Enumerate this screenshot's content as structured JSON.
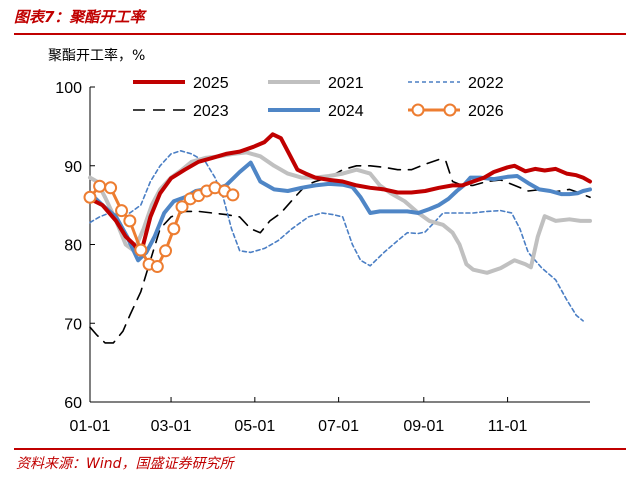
{
  "figure": {
    "title": "图表7：聚酯开工率",
    "source": "资料来源：Wind，国盛证券研究所"
  },
  "chart_data": {
    "type": "line",
    "ylabel": "聚酯开工率，%",
    "ylim": [
      60,
      100
    ],
    "yticks": [
      60,
      70,
      80,
      90,
      100
    ],
    "xlim": [
      1,
      365
    ],
    "xticks": [
      {
        "label": "01-01",
        "day": 1
      },
      {
        "label": "03-01",
        "day": 60
      },
      {
        "label": "05-01",
        "day": 121
      },
      {
        "label": "07-01",
        "day": 182
      },
      {
        "label": "09-01",
        "day": 244
      },
      {
        "label": "11-01",
        "day": 305
      }
    ],
    "grid": false,
    "legend": "top",
    "series": [
      {
        "name": "2025",
        "color": "#c00000",
        "style": "solid",
        "width": 4,
        "points": [
          [
            1,
            85.8
          ],
          [
            10,
            85
          ],
          [
            20,
            83
          ],
          [
            27,
            81
          ],
          [
            33,
            80
          ],
          [
            38,
            78.8
          ],
          [
            45,
            83.5
          ],
          [
            52,
            86.5
          ],
          [
            60,
            88.4
          ],
          [
            70,
            89.5
          ],
          [
            80,
            90.5
          ],
          [
            90,
            91
          ],
          [
            100,
            91.5
          ],
          [
            110,
            91.8
          ],
          [
            120,
            92.4
          ],
          [
            128,
            93
          ],
          [
            134,
            94
          ],
          [
            140,
            93.5
          ],
          [
            146,
            91.5
          ],
          [
            152,
            89.5
          ],
          [
            158,
            89
          ],
          [
            165,
            88.5
          ],
          [
            175,
            88.2
          ],
          [
            185,
            88
          ],
          [
            195,
            87.5
          ],
          [
            205,
            87.2
          ],
          [
            215,
            87
          ],
          [
            225,
            86.6
          ],
          [
            235,
            86.6
          ],
          [
            245,
            86.8
          ],
          [
            255,
            87.2
          ],
          [
            265,
            87.5
          ],
          [
            272,
            87.5
          ],
          [
            280,
            88
          ],
          [
            288,
            88.5
          ],
          [
            295,
            89.2
          ],
          [
            305,
            89.8
          ],
          [
            310,
            90
          ],
          [
            318,
            89.3
          ],
          [
            325,
            89.6
          ],
          [
            332,
            89.4
          ],
          [
            340,
            89.6
          ],
          [
            348,
            89
          ],
          [
            355,
            88.8
          ],
          [
            360,
            88.5
          ],
          [
            365,
            88
          ]
        ]
      },
      {
        "name": "2021",
        "color": "#c0c0c0",
        "style": "solid",
        "width": 4,
        "points": [
          [
            1,
            88.5
          ],
          [
            6,
            88
          ],
          [
            12,
            86
          ],
          [
            20,
            83
          ],
          [
            27,
            80
          ],
          [
            33,
            79.2
          ],
          [
            40,
            82
          ],
          [
            46,
            85
          ],
          [
            52,
            87
          ],
          [
            60,
            88.5
          ],
          [
            68,
            89.5
          ],
          [
            75,
            90.5
          ],
          [
            85,
            91
          ],
          [
            95,
            91.2
          ],
          [
            105,
            91.5
          ],
          [
            115,
            91.7
          ],
          [
            125,
            91.2
          ],
          [
            135,
            90
          ],
          [
            145,
            89
          ],
          [
            155,
            88.5
          ],
          [
            165,
            88.5
          ],
          [
            175,
            88.7
          ],
          [
            185,
            89
          ],
          [
            195,
            89.5
          ],
          [
            205,
            89
          ],
          [
            212,
            87.5
          ],
          [
            220,
            86.5
          ],
          [
            230,
            85.5
          ],
          [
            240,
            84
          ],
          [
            248,
            83
          ],
          [
            258,
            82.5
          ],
          [
            265,
            81.5
          ],
          [
            270,
            80
          ],
          [
            275,
            77.5
          ],
          [
            280,
            76.8
          ],
          [
            290,
            76.4
          ],
          [
            300,
            77
          ],
          [
            310,
            78
          ],
          [
            318,
            77.5
          ],
          [
            322,
            77.1
          ],
          [
            327,
            81
          ],
          [
            332,
            83.6
          ],
          [
            340,
            83
          ],
          [
            350,
            83.2
          ],
          [
            358,
            83
          ],
          [
            365,
            83
          ]
        ]
      },
      {
        "name": "2022",
        "color": "#4a7ec4",
        "style": "dashed-small",
        "width": 1.6,
        "points": [
          [
            1,
            82.8
          ],
          [
            8,
            83.5
          ],
          [
            15,
            84
          ],
          [
            22,
            83.8
          ],
          [
            30,
            84
          ],
          [
            38,
            85
          ],
          [
            45,
            88
          ],
          [
            52,
            90
          ],
          [
            60,
            91.5
          ],
          [
            67,
            91.9
          ],
          [
            75,
            91.5
          ],
          [
            85,
            90.5
          ],
          [
            92,
            88.5
          ],
          [
            98,
            86
          ],
          [
            104,
            82
          ],
          [
            110,
            79.2
          ],
          [
            118,
            79
          ],
          [
            128,
            79.5
          ],
          [
            138,
            80.5
          ],
          [
            148,
            82
          ],
          [
            160,
            83.5
          ],
          [
            170,
            84
          ],
          [
            178,
            83.8
          ],
          [
            185,
            83.5
          ],
          [
            192,
            80
          ],
          [
            198,
            78
          ],
          [
            205,
            77.3
          ],
          [
            215,
            79
          ],
          [
            225,
            80.5
          ],
          [
            232,
            81.5
          ],
          [
            240,
            81.4
          ],
          [
            245,
            81.6
          ],
          [
            250,
            82.5
          ],
          [
            258,
            84
          ],
          [
            270,
            84
          ],
          [
            280,
            84
          ],
          [
            290,
            84.2
          ],
          [
            300,
            84.3
          ],
          [
            308,
            84
          ],
          [
            314,
            82
          ],
          [
            320,
            79
          ],
          [
            330,
            77
          ],
          [
            340,
            75.5
          ],
          [
            348,
            73
          ],
          [
            355,
            71
          ],
          [
            360,
            70.3
          ]
        ]
      },
      {
        "name": "2023",
        "color": "#000000",
        "style": "dashed",
        "width": 1.6,
        "points": [
          [
            1,
            69.5
          ],
          [
            6,
            68.5
          ],
          [
            12,
            67.5
          ],
          [
            18,
            67.5
          ],
          [
            25,
            69
          ],
          [
            30,
            71
          ],
          [
            38,
            74
          ],
          [
            45,
            78
          ],
          [
            52,
            82
          ],
          [
            60,
            83.5
          ],
          [
            70,
            84.2
          ],
          [
            80,
            84.2
          ],
          [
            90,
            84
          ],
          [
            100,
            83.8
          ],
          [
            110,
            83.5
          ],
          [
            118,
            82
          ],
          [
            125,
            81.5
          ],
          [
            132,
            83
          ],
          [
            140,
            84
          ],
          [
            150,
            86
          ],
          [
            158,
            87.5
          ],
          [
            165,
            88
          ],
          [
            175,
            88.5
          ],
          [
            185,
            89.5
          ],
          [
            195,
            90
          ],
          [
            205,
            90
          ],
          [
            215,
            89.8
          ],
          [
            225,
            89.5
          ],
          [
            235,
            89.5
          ],
          [
            245,
            90.2
          ],
          [
            255,
            90.8
          ],
          [
            260,
            90.6
          ],
          [
            265,
            88
          ],
          [
            272,
            87.5
          ],
          [
            280,
            87.5
          ],
          [
            290,
            88
          ],
          [
            300,
            88.2
          ],
          [
            310,
            87.5
          ],
          [
            320,
            86.8
          ],
          [
            330,
            87
          ],
          [
            340,
            86.7
          ],
          [
            350,
            87
          ],
          [
            358,
            86.5
          ],
          [
            365,
            86
          ]
        ]
      },
      {
        "name": "2024",
        "color": "#4f86c6",
        "style": "solid",
        "width": 4,
        "points": [
          [
            1,
            86.5
          ],
          [
            10,
            85
          ],
          [
            20,
            83.5
          ],
          [
            28,
            81
          ],
          [
            36,
            78
          ],
          [
            42,
            79
          ],
          [
            48,
            81
          ],
          [
            55,
            84
          ],
          [
            62,
            85.5
          ],
          [
            70,
            86
          ],
          [
            78,
            86.8
          ],
          [
            85,
            87
          ],
          [
            92,
            87
          ],
          [
            100,
            87.5
          ],
          [
            110,
            89.2
          ],
          [
            118,
            90.4
          ],
          [
            125,
            88
          ],
          [
            135,
            87
          ],
          [
            145,
            86.8
          ],
          [
            155,
            87.2
          ],
          [
            165,
            87.5
          ],
          [
            175,
            87.7
          ],
          [
            185,
            87.6
          ],
          [
            192,
            87.3
          ],
          [
            198,
            86
          ],
          [
            205,
            84
          ],
          [
            212,
            84.2
          ],
          [
            222,
            84.2
          ],
          [
            232,
            84.2
          ],
          [
            240,
            84
          ],
          [
            248,
            84.5
          ],
          [
            255,
            85
          ],
          [
            262,
            85.8
          ],
          [
            268,
            86.8
          ],
          [
            273,
            87.5
          ],
          [
            278,
            88.5
          ],
          [
            285,
            88.5
          ],
          [
            295,
            88.3
          ],
          [
            305,
            88.6
          ],
          [
            312,
            88.7
          ],
          [
            320,
            87.8
          ],
          [
            328,
            87
          ],
          [
            336,
            86.8
          ],
          [
            344,
            86.4
          ],
          [
            350,
            86.4
          ],
          [
            356,
            86.5
          ],
          [
            360,
            86.8
          ],
          [
            365,
            87
          ]
        ]
      },
      {
        "name": "2026",
        "color": "#ed7d31",
        "style": "markers",
        "width": 3,
        "points": [
          [
            1,
            86
          ],
          [
            8,
            87.4
          ],
          [
            16,
            87.2
          ],
          [
            24,
            84.3
          ],
          [
            30,
            83
          ],
          [
            38,
            79.3
          ],
          [
            44,
            77.5
          ],
          [
            50,
            77.2
          ],
          [
            56,
            79.2
          ],
          [
            62,
            82
          ],
          [
            68,
            84.8
          ],
          [
            74,
            85.8
          ],
          [
            80,
            86.2
          ],
          [
            86,
            86.8
          ],
          [
            92,
            87.2
          ],
          [
            99,
            86.8
          ],
          [
            105,
            86.3
          ]
        ]
      }
    ]
  }
}
